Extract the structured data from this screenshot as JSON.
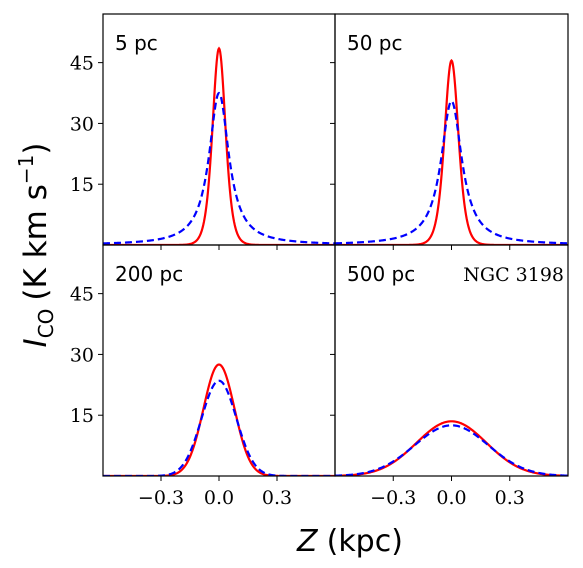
{
  "figure": {
    "ylabel_main": "I",
    "ylabel_sub": "CO",
    "ylabel_unit": "(K km s",
    "ylabel_exp": "−1",
    "ylabel_close": ")",
    "xlabel_main": "Z",
    "xlabel_unit": "(kpc)"
  },
  "chart_data": [
    {
      "type": "line",
      "panel_label": "5 pc",
      "annotation": "",
      "x_range": [
        -0.6,
        0.6
      ],
      "xlim": [
        -0.6,
        0.6
      ],
      "ylim": [
        0,
        57
      ],
      "xticks": [
        -0.3,
        0.0,
        0.3
      ],
      "xtick_labels": [
        "−0.3",
        "0.0",
        "0.3"
      ],
      "yticks": [
        15,
        30,
        45
      ],
      "ytick_labels": [
        "15",
        "30",
        "45"
      ],
      "show_xticklabels": false,
      "show_yticklabels": true,
      "series": [
        {
          "style": "solid",
          "color": "#ff0000",
          "peak": 48.5,
          "width_kpc": 0.045,
          "profile": "sech2"
        },
        {
          "style": "dashed",
          "color": "#0000ff",
          "peak": 37.5,
          "width_kpc": 0.062,
          "profile": "lorentz"
        }
      ]
    },
    {
      "type": "line",
      "panel_label": "50 pc",
      "annotation": "",
      "x_range": [
        -0.6,
        0.6
      ],
      "xlim": [
        -0.6,
        0.6
      ],
      "ylim": [
        0,
        57
      ],
      "xticks": [
        -0.3,
        0.0,
        0.3
      ],
      "xtick_labels": [
        "−0.3",
        "0.0",
        "0.3"
      ],
      "yticks": [
        15,
        30,
        45
      ],
      "ytick_labels": [
        "15",
        "30",
        "45"
      ],
      "show_xticklabels": false,
      "show_yticklabels": false,
      "series": [
        {
          "style": "solid",
          "color": "#ff0000",
          "peak": 45.5,
          "width_kpc": 0.048,
          "profile": "sech2"
        },
        {
          "style": "dashed",
          "color": "#0000ff",
          "peak": 35.5,
          "width_kpc": 0.065,
          "profile": "lorentz"
        }
      ]
    },
    {
      "type": "line",
      "panel_label": "200 pc",
      "annotation": "",
      "x_range": [
        -0.6,
        0.6
      ],
      "xlim": [
        -0.6,
        0.6
      ],
      "ylim": [
        0,
        57
      ],
      "xticks": [
        -0.3,
        0.0,
        0.3
      ],
      "xtick_labels": [
        "−0.3",
        "0.0",
        "0.3"
      ],
      "yticks": [
        15,
        30,
        45
      ],
      "ytick_labels": [
        "15",
        "30",
        "45"
      ],
      "show_xticklabels": true,
      "show_yticklabels": true,
      "series": [
        {
          "style": "solid",
          "color": "#ff0000",
          "peak": 27.5,
          "width_kpc": 0.08,
          "profile": "gauss"
        },
        {
          "style": "dashed",
          "color": "#0000ff",
          "peak": 23.5,
          "width_kpc": 0.09,
          "profile": "gauss"
        }
      ]
    },
    {
      "type": "line",
      "panel_label": "500 pc",
      "annotation": "NGC 3198",
      "x_range": [
        -0.6,
        0.6
      ],
      "xlim": [
        -0.6,
        0.6
      ],
      "ylim": [
        0,
        57
      ],
      "xticks": [
        -0.3,
        0.0,
        0.3
      ],
      "xtick_labels": [
        "−0.3",
        "0.0",
        "0.3"
      ],
      "yticks": [
        15,
        30,
        45
      ],
      "ytick_labels": [
        "15",
        "30",
        "45"
      ],
      "show_xticklabels": true,
      "show_yticklabels": false,
      "series": [
        {
          "style": "solid",
          "color": "#ff0000",
          "peak": 13.5,
          "width_kpc": 0.18,
          "profile": "gauss"
        },
        {
          "style": "dashed",
          "color": "#0000ff",
          "peak": 12.5,
          "width_kpc": 0.19,
          "profile": "gauss"
        }
      ]
    }
  ]
}
